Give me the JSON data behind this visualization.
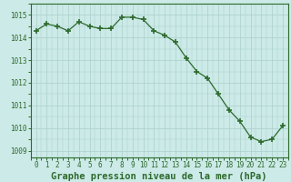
{
  "x": [
    0,
    1,
    2,
    3,
    4,
    5,
    6,
    7,
    8,
    9,
    10,
    11,
    12,
    13,
    14,
    15,
    16,
    17,
    18,
    19,
    20,
    21,
    22,
    23
  ],
  "y": [
    1014.3,
    1014.6,
    1014.5,
    1014.3,
    1014.7,
    1014.5,
    1014.4,
    1014.4,
    1014.9,
    1014.9,
    1014.8,
    1014.3,
    1014.1,
    1013.8,
    1013.1,
    1012.5,
    1012.2,
    1011.5,
    1010.8,
    1010.3,
    1009.6,
    1009.4,
    1009.5,
    1010.1
  ],
  "line_color": "#2d6a2d",
  "marker": "+",
  "marker_size": 5,
  "marker_lw": 1.2,
  "bg_color": "#cceae7",
  "grid_color": "#aacfcb",
  "title": "Graphe pression niveau de la mer (hPa)",
  "ylim_min": 1008.7,
  "ylim_max": 1015.5,
  "yticks": [
    1009,
    1010,
    1011,
    1012,
    1013,
    1014,
    1015
  ],
  "xticks": [
    0,
    1,
    2,
    3,
    4,
    5,
    6,
    7,
    8,
    9,
    10,
    11,
    12,
    13,
    14,
    15,
    16,
    17,
    18,
    19,
    20,
    21,
    22,
    23
  ],
  "title_fontsize": 7.5,
  "tick_fontsize": 5.5,
  "title_color": "#2d6a2d",
  "tick_color": "#2d6a2d",
  "spine_color": "#2d6a2d",
  "linewidth": 0.9
}
